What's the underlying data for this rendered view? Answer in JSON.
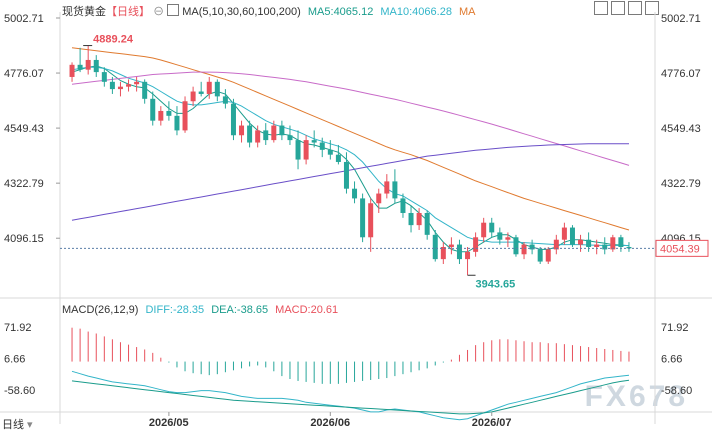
{
  "header": {
    "title": "现货黄金",
    "period": "【日线】",
    "ma_label": "MA(5,10,30,60,100,200)",
    "ma5": "MA5:4065.12",
    "ma10": "MA10:4066.28",
    "ma_more": "MA"
  },
  "macd_header": {
    "label": "MACD(26,12,9)",
    "diff": "DIFF:-28.35",
    "dea": "DEA:-38.65",
    "macd": "MACD:20.61"
  },
  "footer": {
    "period_label": "日线"
  },
  "watermark": "FX678",
  "colors": {
    "up": "#e8505b",
    "down": "#26a69a",
    "ma5": "#1a9c8c",
    "ma10": "#33b5c9",
    "ma30": "#e07a2f",
    "ma60": "#c86bc8",
    "ma100": "#6a4fc8",
    "last_price_box": "#ffffff",
    "last_price_text": "#e8505b"
  },
  "chart_data": [
    {
      "type": "candlestick",
      "title": "现货黄金",
      "yticks": [
        "5002.71",
        "4776.07",
        "4549.43",
        "4322.79",
        "4096.15"
      ],
      "ylim": [
        3850,
        5002.71
      ],
      "xticks": [
        "2026/05",
        "2026/06",
        "2026/07"
      ],
      "max_label": "4889.24",
      "min_label": "3943.65",
      "last_price": "4054.39",
      "candles": [
        {
          "o": 4760,
          "h": 4820,
          "l": 4740,
          "c": 4810
        },
        {
          "o": 4810,
          "h": 4880,
          "l": 4780,
          "c": 4790
        },
        {
          "o": 4790,
          "h": 4889.24,
          "l": 4770,
          "c": 4830
        },
        {
          "o": 4830,
          "h": 4850,
          "l": 4760,
          "c": 4780
        },
        {
          "o": 4780,
          "h": 4800,
          "l": 4720,
          "c": 4740
        },
        {
          "o": 4740,
          "h": 4760,
          "l": 4690,
          "c": 4710
        },
        {
          "o": 4710,
          "h": 4740,
          "l": 4680,
          "c": 4720
        },
        {
          "o": 4720,
          "h": 4750,
          "l": 4700,
          "c": 4730
        },
        {
          "o": 4730,
          "h": 4760,
          "l": 4700,
          "c": 4740
        },
        {
          "o": 4740,
          "h": 4750,
          "l": 4650,
          "c": 4670
        },
        {
          "o": 4670,
          "h": 4700,
          "l": 4560,
          "c": 4580
        },
        {
          "o": 4580,
          "h": 4640,
          "l": 4560,
          "c": 4620
        },
        {
          "o": 4620,
          "h": 4660,
          "l": 4580,
          "c": 4600
        },
        {
          "o": 4600,
          "h": 4640,
          "l": 4520,
          "c": 4540
        },
        {
          "o": 4540,
          "h": 4680,
          "l": 4530,
          "c": 4660
        },
        {
          "o": 4660,
          "h": 4720,
          "l": 4640,
          "c": 4700
        },
        {
          "o": 4700,
          "h": 4740,
          "l": 4680,
          "c": 4690
        },
        {
          "o": 4690,
          "h": 4760,
          "l": 4670,
          "c": 4740
        },
        {
          "o": 4740,
          "h": 4750,
          "l": 4660,
          "c": 4680
        },
        {
          "o": 4680,
          "h": 4710,
          "l": 4630,
          "c": 4650
        },
        {
          "o": 4650,
          "h": 4670,
          "l": 4500,
          "c": 4520
        },
        {
          "o": 4520,
          "h": 4580,
          "l": 4490,
          "c": 4560
        },
        {
          "o": 4560,
          "h": 4580,
          "l": 4470,
          "c": 4490
        },
        {
          "o": 4490,
          "h": 4560,
          "l": 4470,
          "c": 4540
        },
        {
          "o": 4540,
          "h": 4570,
          "l": 4480,
          "c": 4500
        },
        {
          "o": 4500,
          "h": 4580,
          "l": 4490,
          "c": 4560
        },
        {
          "o": 4560,
          "h": 4580,
          "l": 4500,
          "c": 4520
        },
        {
          "o": 4520,
          "h": 4560,
          "l": 4480,
          "c": 4500
        },
        {
          "o": 4500,
          "h": 4540,
          "l": 4380,
          "c": 4420
        },
        {
          "o": 4420,
          "h": 4520,
          "l": 4400,
          "c": 4500
        },
        {
          "o": 4500,
          "h": 4540,
          "l": 4470,
          "c": 4490
        },
        {
          "o": 4490,
          "h": 4510,
          "l": 4430,
          "c": 4460
        },
        {
          "o": 4460,
          "h": 4500,
          "l": 4420,
          "c": 4440
        },
        {
          "o": 4440,
          "h": 4480,
          "l": 4400,
          "c": 4410
        },
        {
          "o": 4410,
          "h": 4450,
          "l": 4280,
          "c": 4300
        },
        {
          "o": 4300,
          "h": 4330,
          "l": 4240,
          "c": 4260
        },
        {
          "o": 4260,
          "h": 4280,
          "l": 4080,
          "c": 4100
        },
        {
          "o": 4100,
          "h": 4260,
          "l": 4040,
          "c": 4240
        },
        {
          "o": 4240,
          "h": 4300,
          "l": 4200,
          "c": 4280
        },
        {
          "o": 4280,
          "h": 4360,
          "l": 4260,
          "c": 4330
        },
        {
          "o": 4330,
          "h": 4380,
          "l": 4240,
          "c": 4260
        },
        {
          "o": 4260,
          "h": 4280,
          "l": 4180,
          "c": 4200
        },
        {
          "o": 4200,
          "h": 4230,
          "l": 4120,
          "c": 4150
        },
        {
          "o": 4150,
          "h": 4220,
          "l": 4130,
          "c": 4200
        },
        {
          "o": 4200,
          "h": 4210,
          "l": 4090,
          "c": 4110
        },
        {
          "o": 4110,
          "h": 4130,
          "l": 4000,
          "c": 4010
        },
        {
          "o": 4010,
          "h": 4080,
          "l": 3990,
          "c": 4060
        },
        {
          "o": 4060,
          "h": 4100,
          "l": 4030,
          "c": 4070
        },
        {
          "o": 4070,
          "h": 4090,
          "l": 3990,
          "c": 4010
        },
        {
          "o": 4010,
          "h": 4060,
          "l": 3943.65,
          "c": 4040
        },
        {
          "o": 4040,
          "h": 4120,
          "l": 4020,
          "c": 4100
        },
        {
          "o": 4100,
          "h": 4180,
          "l": 4080,
          "c": 4160
        },
        {
          "o": 4160,
          "h": 4180,
          "l": 4100,
          "c": 4120
        },
        {
          "o": 4120,
          "h": 4140,
          "l": 4070,
          "c": 4090
        },
        {
          "o": 4090,
          "h": 4120,
          "l": 4060,
          "c": 4100
        },
        {
          "o": 4100,
          "h": 4110,
          "l": 4020,
          "c": 4030
        },
        {
          "o": 4030,
          "h": 4080,
          "l": 4010,
          "c": 4070
        },
        {
          "o": 4070,
          "h": 4090,
          "l": 4030,
          "c": 4050
        },
        {
          "o": 4050,
          "h": 4060,
          "l": 3990,
          "c": 4000
        },
        {
          "o": 4000,
          "h": 4060,
          "l": 3990,
          "c": 4050
        },
        {
          "o": 4050,
          "h": 4110,
          "l": 4030,
          "c": 4090
        },
        {
          "o": 4090,
          "h": 4160,
          "l": 4070,
          "c": 4140
        },
        {
          "o": 4140,
          "h": 4150,
          "l": 4060,
          "c": 4070
        },
        {
          "o": 4070,
          "h": 4110,
          "l": 4040,
          "c": 4090
        },
        {
          "o": 4090,
          "h": 4120,
          "l": 4040,
          "c": 4060
        },
        {
          "o": 4060,
          "h": 4090,
          "l": 4030,
          "c": 4070
        },
        {
          "o": 4070,
          "h": 4100,
          "l": 4030,
          "c": 4050
        },
        {
          "o": 4050,
          "h": 4110,
          "l": 4040,
          "c": 4100
        },
        {
          "o": 4100,
          "h": 4110,
          "l": 4040,
          "c": 4060
        },
        {
          "o": 4060,
          "h": 4080,
          "l": 4040,
          "c": 4054.39
        }
      ],
      "ma_lines": [
        {
          "name": "MA5",
          "values": [
            4780,
            4790,
            4800,
            4805,
            4795,
            4770,
            4745,
            4730,
            4720,
            4715,
            4690,
            4660,
            4630,
            4610,
            4610,
            4630,
            4660,
            4690,
            4700,
            4690,
            4650,
            4610,
            4570,
            4540,
            4525,
            4520,
            4525,
            4520,
            4500,
            4485,
            4480,
            4470,
            4460,
            4450,
            4420,
            4380,
            4320,
            4260,
            4220,
            4220,
            4240,
            4250,
            4230,
            4200,
            4170,
            4120,
            4080,
            4050,
            4040,
            4040,
            4060,
            4080,
            4100,
            4110,
            4110,
            4090,
            4070,
            4060,
            4050,
            4050,
            4060,
            4080,
            4090,
            4090,
            4085,
            4080,
            4075,
            4070,
            4068,
            4065.12
          ]
        },
        {
          "name": "MA10",
          "values": [
            4790,
            4795,
            4800,
            4800,
            4795,
            4785,
            4770,
            4755,
            4745,
            4735,
            4720,
            4700,
            4680,
            4660,
            4650,
            4645,
            4645,
            4650,
            4655,
            4660,
            4655,
            4640,
            4620,
            4600,
            4580,
            4565,
            4555,
            4545,
            4535,
            4520,
            4505,
            4495,
            4485,
            4475,
            4460,
            4440,
            4410,
            4370,
            4330,
            4300,
            4280,
            4270,
            4250,
            4230,
            4210,
            4180,
            4160,
            4140,
            4120,
            4100,
            4090,
            4085,
            4080,
            4080,
            4080,
            4080,
            4078,
            4076,
            4074,
            4072,
            4070,
            4070,
            4070,
            4070,
            4068,
            4067,
            4066,
            4066,
            4066,
            4066.28
          ]
        },
        {
          "name": "MA30",
          "values": [
            4880,
            4876,
            4872,
            4868,
            4864,
            4860,
            4856,
            4852,
            4848,
            4844,
            4838,
            4830,
            4820,
            4810,
            4800,
            4790,
            4780,
            4770,
            4760,
            4750,
            4738,
            4724,
            4710,
            4696,
            4682,
            4668,
            4654,
            4640,
            4626,
            4612,
            4598,
            4584,
            4570,
            4556,
            4542,
            4528,
            4514,
            4500,
            4486,
            4472,
            4460,
            4450,
            4440,
            4428,
            4416,
            4402,
            4388,
            4374,
            4360,
            4346,
            4332,
            4320,
            4308,
            4296,
            4284,
            4272,
            4260,
            4250,
            4240,
            4230,
            4220,
            4210,
            4200,
            4190,
            4180,
            4170,
            4160,
            4150,
            4140,
            4130
          ]
        },
        {
          "name": "MA60",
          "values": [
            4730,
            4734,
            4738,
            4742,
            4746,
            4750,
            4754,
            4758,
            4762,
            4766,
            4770,
            4772,
            4774,
            4776,
            4778,
            4780,
            4780,
            4780,
            4779,
            4778,
            4776,
            4773,
            4770,
            4766,
            4762,
            4758,
            4754,
            4750,
            4745,
            4740,
            4734,
            4728,
            4722,
            4716,
            4710,
            4703,
            4696,
            4689,
            4682,
            4675,
            4668,
            4660,
            4652,
            4644,
            4636,
            4628,
            4620,
            4611,
            4602,
            4593,
            4584,
            4575,
            4566,
            4556,
            4546,
            4536,
            4526,
            4516,
            4506,
            4496,
            4486,
            4476,
            4466,
            4456,
            4446,
            4436,
            4426,
            4416,
            4406,
            4396
          ]
        },
        {
          "name": "MA100",
          "values": [
            4170,
            4176,
            4182,
            4188,
            4194,
            4200,
            4206,
            4212,
            4218,
            4224,
            4230,
            4236,
            4242,
            4248,
            4254,
            4260,
            4266,
            4272,
            4278,
            4284,
            4290,
            4296,
            4302,
            4308,
            4314,
            4320,
            4326,
            4332,
            4338,
            4344,
            4350,
            4356,
            4362,
            4368,
            4374,
            4380,
            4386,
            4392,
            4398,
            4404,
            4410,
            4416,
            4422,
            4428,
            4434,
            4438,
            4442,
            4446,
            4450,
            4454,
            4458,
            4461,
            4464,
            4467,
            4470,
            4472,
            4474,
            4476,
            4478,
            4480,
            4481,
            4482,
            4483,
            4484,
            4485,
            4485,
            4485,
            4485,
            4485,
            4485
          ]
        }
      ]
    },
    {
      "type": "macd",
      "title": "MACD(26,12,9)",
      "yticks": [
        "71.92",
        "6.66",
        "-58.60"
      ],
      "ylim": [
        -100,
        90
      ],
      "hist": [
        70,
        68,
        62,
        58,
        52,
        46,
        40,
        35,
        30,
        25,
        18,
        8,
        -2,
        -12,
        -20,
        -24,
        -26,
        -28,
        -26,
        -22,
        -18,
        -14,
        -10,
        -8,
        -12,
        -20,
        -30,
        -36,
        -40,
        -42,
        -44,
        -46,
        -46,
        -46,
        -44,
        -42,
        -40,
        -38,
        -36,
        -34,
        -30,
        -26,
        -22,
        -18,
        -14,
        -8,
        -2,
        4,
        14,
        24,
        34,
        40,
        44,
        46,
        46,
        44,
        42,
        40,
        40,
        38,
        38,
        36,
        34,
        32,
        30,
        28,
        26,
        24,
        22,
        20.61
      ],
      "diff": [
        -20,
        -25,
        -30,
        -34,
        -38,
        -42,
        -44,
        -46,
        -48,
        -50,
        -54,
        -58,
        -62,
        -64,
        -64,
        -62,
        -60,
        -60,
        -62,
        -64,
        -68,
        -72,
        -74,
        -76,
        -76,
        -76,
        -76,
        -78,
        -80,
        -84,
        -86,
        -88,
        -90,
        -92,
        -94,
        -96,
        -100,
        -104,
        -104,
        -100,
        -98,
        -100,
        -102,
        -104,
        -108,
        -112,
        -116,
        -118,
        -120,
        -118,
        -112,
        -106,
        -100,
        -94,
        -88,
        -84,
        -80,
        -76,
        -72,
        -68,
        -64,
        -58,
        -52,
        -46,
        -42,
        -38,
        -34,
        -32,
        -30,
        -28.35
      ],
      "dea": [
        -40,
        -42,
        -44,
        -46,
        -48,
        -50,
        -52,
        -54,
        -56,
        -58,
        -60,
        -62,
        -64,
        -66,
        -68,
        -70,
        -72,
        -74,
        -76,
        -78,
        -80,
        -81,
        -82,
        -83,
        -84,
        -85,
        -86,
        -87,
        -88,
        -89,
        -90,
        -91,
        -92,
        -93,
        -94,
        -95,
        -96,
        -97,
        -98,
        -99,
        -100,
        -101,
        -102,
        -103,
        -104,
        -105,
        -106,
        -107,
        -108,
        -108,
        -107,
        -106,
        -104,
        -100,
        -96,
        -92,
        -88,
        -84,
        -80,
        -76,
        -72,
        -68,
        -64,
        -60,
        -56,
        -52,
        -48,
        -44,
        -41,
        -38.65
      ],
      "xticks": [
        "2026/05",
        "2026/06",
        "2026/07"
      ]
    }
  ]
}
